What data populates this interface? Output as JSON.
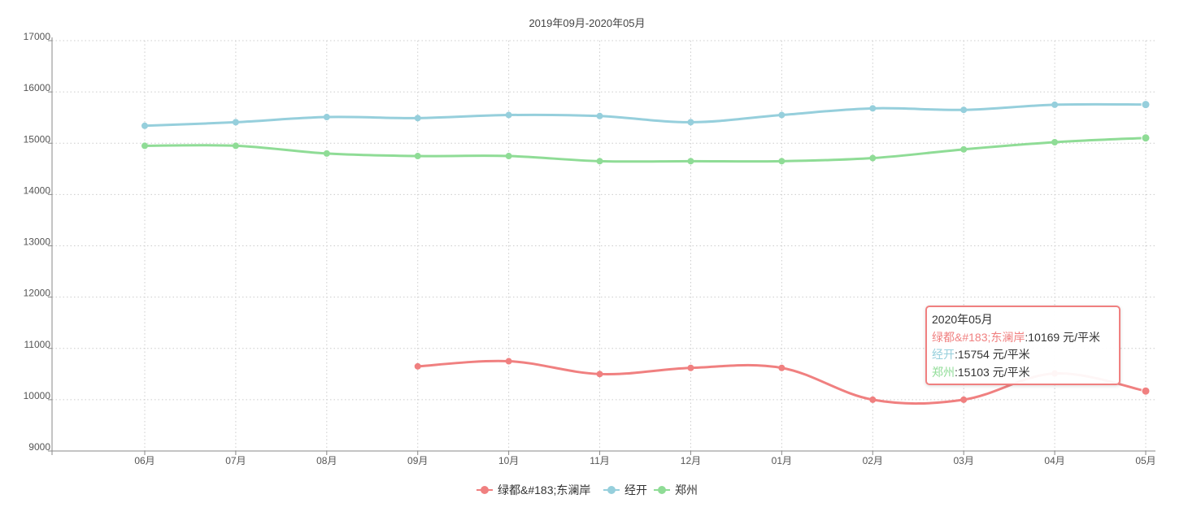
{
  "chart_data": {
    "type": "line",
    "title": "2019年09月-2020年05月",
    "xlabel": "",
    "ylabel": "",
    "categories": [
      "06月",
      "07月",
      "08月",
      "09月",
      "10月",
      "11月",
      "12月",
      "01月",
      "02月",
      "03月",
      "04月",
      "05月"
    ],
    "ylim": [
      9000,
      17000
    ],
    "yticks": [
      9000,
      10000,
      11000,
      12000,
      13000,
      14000,
      15000,
      16000,
      17000
    ],
    "grid": true,
    "legend_position": "bottom",
    "series": [
      {
        "name": "绿都&#183;东澜岸",
        "color": "#f08080",
        "values": [
          null,
          null,
          null,
          10650,
          10750,
          10500,
          10620,
          10620,
          10000,
          10000,
          10510,
          10169
        ]
      },
      {
        "name": "经开",
        "color": "#96cfdc",
        "values": [
          15340,
          15410,
          15510,
          15490,
          15550,
          15530,
          15410,
          15550,
          15680,
          15650,
          15750,
          15754
        ]
      },
      {
        "name": "郑州",
        "color": "#8fdc96",
        "values": [
          14950,
          14950,
          14800,
          14750,
          14750,
          14650,
          14650,
          14650,
          14710,
          14880,
          15020,
          15103
        ]
      }
    ]
  },
  "tooltip": {
    "title": "2020年05月",
    "rows": [
      {
        "name": "绿都&#183;东澜岸",
        "value": ":10169 元/平米",
        "color": "#f08080"
      },
      {
        "name": "经开",
        "value": ":15754 元/平米",
        "color": "#96cfdc"
      },
      {
        "name": "郑州",
        "value": ":15103 元/平米",
        "color": "#8fdc96"
      }
    ]
  }
}
